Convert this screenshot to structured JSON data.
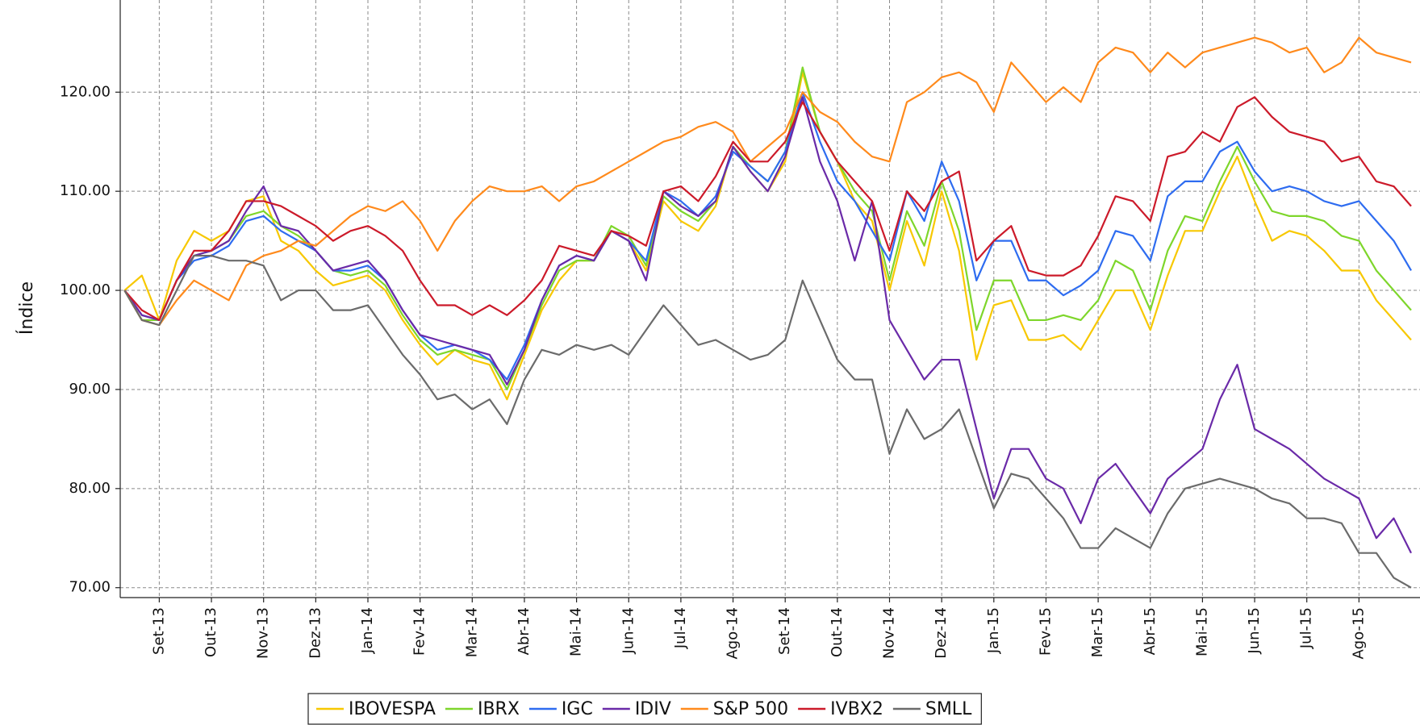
{
  "chart_data": {
    "type": "line",
    "y_label": "Índice",
    "categories": [
      null,
      null,
      "Set-13",
      null,
      null,
      "Out-13",
      null,
      null,
      "Nov-13",
      null,
      null,
      "Dez-13",
      null,
      null,
      "Jan-14",
      null,
      null,
      "Fev-14",
      null,
      null,
      "Mar-14",
      null,
      null,
      "Abr-14",
      null,
      null,
      "Mai-14",
      null,
      null,
      "Jun-14",
      null,
      null,
      "Jul-14",
      null,
      null,
      "Ago-14",
      null,
      null,
      "Set-14",
      null,
      null,
      "Out-14",
      null,
      null,
      "Nov-14",
      null,
      null,
      "Dez-14",
      null,
      null,
      "Jan-15",
      null,
      null,
      "Fev-15",
      null,
      null,
      "Mar-15",
      null,
      null,
      "Abr-15",
      null,
      null,
      "Mai-15",
      null,
      null,
      "Jun-15",
      null,
      null,
      "Jul-15",
      null,
      null,
      "Ago-15",
      null,
      null,
      null
    ],
    "ylim": [
      69,
      129.3
    ],
    "yticks": [
      {
        "value": 70,
        "label": "70.00"
      },
      {
        "value": 80,
        "label": "80.00"
      },
      {
        "value": 90,
        "label": "90.00"
      },
      {
        "value": 100,
        "label": "100.00"
      },
      {
        "value": 110,
        "label": "110.00"
      },
      {
        "value": 120,
        "label": "120.00"
      }
    ],
    "grid": true,
    "legend": "bottom",
    "series": [
      {
        "name": "IBOVESPA",
        "color": "#f7c800",
        "values": [
          100,
          101.5,
          97,
          103,
          106,
          105,
          106,
          109,
          109.5,
          105,
          104,
          102,
          100.5,
          101,
          101.5,
          100,
          97,
          94.5,
          92.5,
          94,
          93,
          92.5,
          89,
          93.5,
          98,
          101,
          103,
          103,
          106,
          105,
          102,
          109,
          107,
          106,
          108.5,
          114.5,
          112,
          110,
          113,
          122,
          116,
          113,
          109,
          107,
          100,
          107,
          102.5,
          110,
          104,
          93,
          98.5,
          99,
          95,
          95,
          95.5,
          94,
          97,
          100,
          100,
          96,
          101.5,
          106,
          106,
          110,
          113.5,
          109,
          105,
          106,
          105.5,
          104,
          102,
          102,
          99,
          97,
          95
        ]
      },
      {
        "name": "IBRX",
        "color": "#7ed62b",
        "values": [
          100,
          97,
          97,
          101,
          103.5,
          104,
          105,
          107.5,
          108,
          106.5,
          105.5,
          104,
          102,
          101.5,
          102,
          100.5,
          97.5,
          95,
          93.5,
          94,
          93.5,
          93,
          90,
          94,
          98.5,
          102,
          103,
          103,
          106.5,
          105.5,
          102.5,
          109.5,
          108,
          107,
          109,
          114.5,
          112.5,
          111,
          114,
          122.5,
          116,
          113,
          110,
          108,
          101,
          108,
          104.5,
          111,
          106,
          96,
          101,
          101,
          97,
          97,
          97.5,
          97,
          99,
          103,
          102,
          98,
          104,
          107.5,
          107,
          111,
          114.5,
          111,
          108,
          107.5,
          107.5,
          107,
          105.5,
          105,
          102,
          100,
          98
        ]
      },
      {
        "name": "IGC",
        "color": "#2e6cf0",
        "values": [
          100,
          97.5,
          97,
          101,
          103,
          103.5,
          104.5,
          107,
          107.5,
          106,
          105,
          104,
          102,
          102,
          102.5,
          101,
          98,
          95.5,
          94,
          94.5,
          94,
          93,
          91,
          94.5,
          99,
          102.5,
          103.5,
          103,
          106,
          105,
          103,
          110,
          109,
          107.5,
          109.5,
          114,
          112.5,
          111,
          114,
          120,
          115,
          111,
          109,
          106,
          103,
          110,
          107,
          113,
          109,
          101,
          105,
          105,
          101,
          101,
          99.5,
          100.5,
          102,
          106,
          105.5,
          103,
          109.5,
          111,
          111,
          114,
          115,
          112,
          110,
          110.5,
          110,
          109,
          108.5,
          109,
          107,
          105,
          102
        ]
      },
      {
        "name": "IDIV",
        "color": "#6a2aa8",
        "values": [
          100,
          97.5,
          97,
          101,
          103.5,
          104,
          105,
          108,
          110.5,
          106.5,
          106,
          104,
          102,
          102.5,
          103,
          101,
          98,
          95.5,
          95,
          94.5,
          94,
          93.5,
          90.5,
          94,
          99,
          102.5,
          103.5,
          103,
          106,
          105,
          101,
          110,
          108.5,
          107.5,
          109,
          114.5,
          112,
          110,
          113.5,
          119.5,
          113,
          109,
          103,
          109,
          97,
          94,
          91,
          93,
          93,
          86,
          79,
          84,
          84,
          81,
          80,
          76.5,
          81,
          82.5,
          80,
          77.5,
          81,
          82.5,
          84,
          89,
          92.5,
          86,
          85,
          84,
          82.5,
          81,
          80,
          79,
          75,
          77,
          73.5
        ]
      },
      {
        "name": "S&P 500",
        "color": "#ff8a1c",
        "values": [
          100,
          97,
          96.5,
          99,
          101,
          100,
          99,
          102.5,
          103.5,
          104,
          105,
          104.5,
          106,
          107.5,
          108.5,
          108,
          109,
          107,
          104,
          107,
          109,
          110.5,
          110,
          110,
          110.5,
          109,
          110.5,
          111,
          112,
          113,
          114,
          115,
          115.5,
          116.5,
          117,
          116,
          113,
          114.5,
          116,
          120,
          118,
          117,
          115,
          113.5,
          113,
          119,
          120,
          121.5,
          122,
          121,
          118,
          123,
          121,
          119,
          120.5,
          119,
          123,
          124.5,
          124,
          122,
          124,
          122.5,
          124,
          124.5,
          125,
          125.5,
          125,
          124,
          124.5,
          122,
          123,
          125.5,
          124,
          123.5,
          123
        ]
      },
      {
        "name": "IVBX2",
        "color": "#cc1a2a",
        "values": [
          100,
          98,
          97,
          101,
          104,
          104,
          106,
          109,
          109,
          108.5,
          107.5,
          106.5,
          105,
          106,
          106.5,
          105.5,
          104,
          101,
          98.5,
          98.5,
          97.5,
          98.5,
          97.5,
          99,
          101,
          104.5,
          104,
          103.5,
          106,
          105.5,
          104.5,
          110,
          110.5,
          109,
          111.5,
          115,
          113,
          113,
          115,
          119,
          116,
          113,
          111,
          109,
          104,
          110,
          108,
          111,
          112,
          103,
          105,
          106.5,
          102,
          101.5,
          101.5,
          102.5,
          105.5,
          109.5,
          109,
          107,
          113.5,
          114,
          116,
          115,
          118.5,
          119.5,
          117.5,
          116,
          115.5,
          115,
          113,
          113.5,
          111,
          110.5,
          108.5
        ]
      },
      {
        "name": "SMLL",
        "color": "#6b6b6b",
        "values": [
          100,
          97,
          96.5,
          100,
          103.5,
          103.5,
          103,
          103,
          102.5,
          99,
          100,
          100,
          98,
          98,
          98.5,
          96,
          93.5,
          91.5,
          89,
          89.5,
          88,
          89,
          86.5,
          91,
          94,
          93.5,
          94.5,
          94,
          94.5,
          93.5,
          96,
          98.5,
          96.5,
          94.5,
          95,
          94,
          93,
          93.5,
          95,
          101,
          97,
          93,
          91,
          91,
          83.5,
          88,
          85,
          86,
          88,
          83,
          78,
          81.5,
          81,
          79,
          77,
          74,
          74,
          76,
          75,
          74,
          77.5,
          80,
          80.5,
          81,
          80.5,
          80,
          79,
          78.5,
          77,
          77,
          76.5,
          73.5,
          73.5,
          71,
          70
        ]
      }
    ]
  }
}
